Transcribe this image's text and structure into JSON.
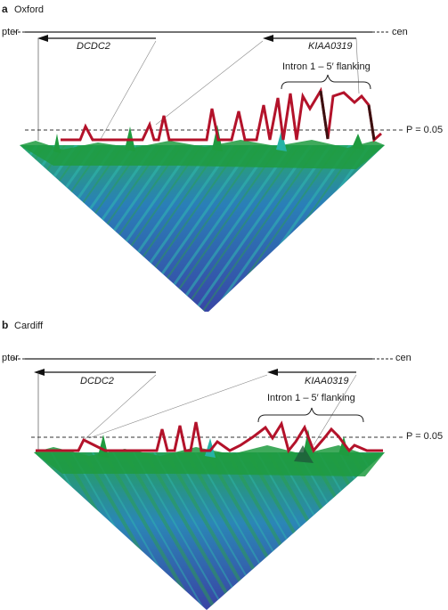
{
  "figure": {
    "panels": [
      {
        "letter": "a",
        "title": "Oxford",
        "pter": "pter",
        "cen": "cen",
        "gene1": "DCDC2",
        "gene2": "KIAA0319",
        "region": "Intron 1 – 5′ flanking",
        "threshold": "P = 0.05"
      },
      {
        "letter": "b",
        "title": "Cardiff",
        "pter": "pter",
        "cen": "cen",
        "gene1": "DCDC2",
        "gene2": "KIAA0319",
        "region": "Intron 1 – 5′ flanking",
        "threshold": "P = 0.05"
      }
    ]
  },
  "colors": {
    "trace": "#b3122a",
    "trace_dark": "#3b1010",
    "heatmap_low": "#3a4aa8",
    "heatmap_mid": "#27b3a6",
    "heatmap_high": "#1f9b3f",
    "axis": "#222222"
  }
}
